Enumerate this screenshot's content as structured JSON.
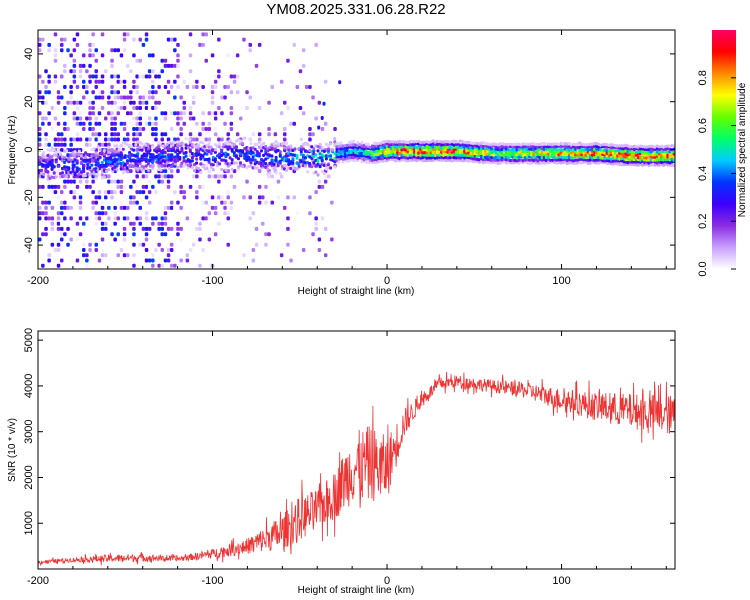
{
  "title": "YM08.2025.331.06.28.R22",
  "chart_data": [
    {
      "type": "heatmap",
      "name": "spectrogram",
      "xlabel": "Height of straight line (km)",
      "ylabel": "Frequency (Hz)",
      "xlim": [
        -200,
        165
      ],
      "ylim": [
        -50,
        50
      ],
      "xticks": [
        -200,
        -100,
        0,
        100
      ],
      "xtick_labels": [
        "-200",
        "-100",
        "0",
        "100"
      ],
      "yticks": [
        40,
        20,
        0,
        -20,
        -40
      ],
      "ytick_labels": [
        "40",
        "20",
        "0",
        "-20",
        "-40"
      ],
      "colorbar": {
        "label": "Normalized spectral amplitude",
        "range": [
          0,
          1
        ],
        "ticks": [
          0.0,
          0.2,
          0.4,
          0.6,
          0.8
        ],
        "tick_labels": [
          "0.0",
          "0.2",
          "0.4",
          "0.6",
          "0.8"
        ],
        "colors": [
          "#ffffff",
          "#c8a0ff",
          "#8a2be2",
          "#3b00ff",
          "#0033ff",
          "#00ccff",
          "#00ff66",
          "#66ff00",
          "#ffff00",
          "#ff8800",
          "#ff0000",
          "#ff0066"
        ]
      },
      "band_center_hz": [
        [
          -190,
          -6
        ],
        [
          -180,
          -6
        ],
        [
          -170,
          -5
        ],
        [
          -160,
          -4
        ],
        [
          -150,
          -3
        ],
        [
          -140,
          -2
        ],
        [
          -130,
          -2
        ],
        [
          -120,
          -1
        ],
        [
          -110,
          -2
        ],
        [
          -100,
          -3
        ],
        [
          -90,
          -1
        ],
        [
          -80,
          -2
        ],
        [
          -70,
          -2
        ],
        [
          -60,
          -3
        ],
        [
          -50,
          -2
        ],
        [
          -40,
          -3
        ],
        [
          -30,
          -1
        ],
        [
          -20,
          0
        ],
        [
          -10,
          -1
        ],
        [
          0,
          0
        ],
        [
          20,
          0
        ],
        [
          40,
          0
        ],
        [
          60,
          -1
        ],
        [
          80,
          -1
        ],
        [
          100,
          -1
        ],
        [
          120,
          -1
        ],
        [
          140,
          -2
        ],
        [
          165,
          -2
        ]
      ],
      "peak_amplitude": [
        [
          -190,
          0.35
        ],
        [
          -150,
          0.4
        ],
        [
          -100,
          0.38
        ],
        [
          -60,
          0.42
        ],
        [
          -30,
          0.5
        ],
        [
          -10,
          0.55
        ],
        [
          0,
          0.88
        ],
        [
          20,
          0.95
        ],
        [
          40,
          0.92
        ],
        [
          60,
          0.7
        ],
        [
          80,
          0.75
        ],
        [
          100,
          0.85
        ],
        [
          120,
          0.9
        ],
        [
          140,
          0.95
        ],
        [
          165,
          0.92
        ]
      ]
    },
    {
      "type": "line",
      "name": "snr",
      "color": "#ee3333",
      "xlabel": "Height of straight line (km)",
      "ylabel": "SNR (10 * v/v)",
      "xlim": [
        -200,
        165
      ],
      "ylim": [
        0,
        5200
      ],
      "xticks": [
        -200,
        -100,
        0,
        100
      ],
      "xtick_labels": [
        "-200",
        "-100",
        "0",
        "100"
      ],
      "yticks": [
        1000,
        2000,
        3000,
        4000,
        5000
      ],
      "ytick_labels": [
        "1000",
        "2000",
        "3000",
        "4000",
        "5000"
      ],
      "envelope": {
        "x": [
          -200,
          -180,
          -160,
          -140,
          -120,
          -100,
          -80,
          -60,
          -50,
          -40,
          -30,
          -20,
          -10,
          0,
          10,
          20,
          30,
          40,
          60,
          80,
          100,
          120,
          140,
          165
        ],
        "mean": [
          150,
          200,
          230,
          250,
          220,
          330,
          500,
          800,
          1100,
          1300,
          1600,
          2200,
          2300,
          2200,
          3200,
          3700,
          4050,
          4100,
          4000,
          3900,
          3700,
          3550,
          3450,
          3350
        ],
        "spread": [
          60,
          70,
          120,
          120,
          80,
          150,
          250,
          550,
          700,
          650,
          750,
          1100,
          1200,
          1000,
          450,
          200,
          200,
          200,
          200,
          250,
          350,
          450,
          550,
          650
        ]
      }
    }
  ]
}
